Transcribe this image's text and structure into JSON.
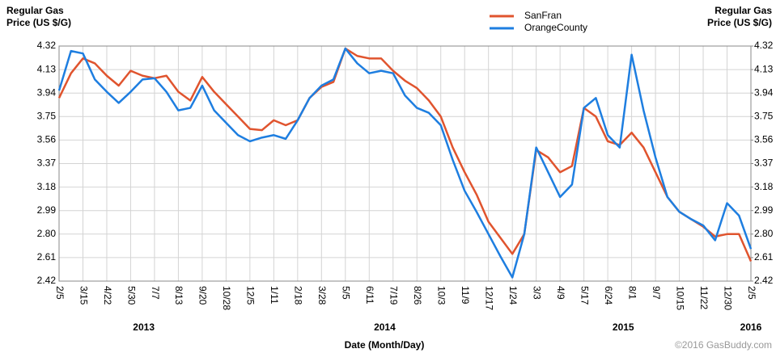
{
  "chart_data": {
    "type": "line",
    "y_label": [
      "Regular Gas",
      "Price (US $/G)"
    ],
    "y2_label": [
      "Regular Gas",
      "Price (US $/G)"
    ],
    "x_label": "Date (Month/Day)",
    "years": [
      "2013",
      "2014",
      "2015",
      "2016"
    ],
    "credit": "©2016 GasBuddy.com",
    "categories": [
      "2/5",
      null,
      "3/15",
      null,
      "4/22",
      null,
      "5/30",
      null,
      "7/7",
      null,
      "8/13",
      null,
      "9/20",
      null,
      "10/28",
      null,
      "12/5",
      null,
      "1/11",
      null,
      "2/18",
      null,
      "3/28",
      null,
      "5/5",
      null,
      "6/11",
      null,
      "7/19",
      null,
      "8/26",
      null,
      "10/3",
      null,
      "11/9",
      null,
      "12/17",
      null,
      "1/24",
      null,
      "3/3",
      null,
      "4/9",
      null,
      "5/17",
      null,
      "6/24",
      null,
      "8/1",
      null,
      "9/7",
      null,
      "10/15",
      null,
      "11/22",
      null,
      "12/30",
      null,
      "2/5"
    ],
    "series": [
      {
        "name": "SanFran",
        "color": "#e0542e",
        "values": [
          3.9,
          4.1,
          4.22,
          4.18,
          4.08,
          4.0,
          4.12,
          4.08,
          4.06,
          4.08,
          3.95,
          3.88,
          4.07,
          3.95,
          3.85,
          3.75,
          3.65,
          3.64,
          3.72,
          3.68,
          3.72,
          3.9,
          3.99,
          4.03,
          4.3,
          4.24,
          4.22,
          4.22,
          4.12,
          4.04,
          3.98,
          3.88,
          3.75,
          3.5,
          3.3,
          3.12,
          2.9,
          2.77,
          2.64,
          2.8,
          3.48,
          3.42,
          3.3,
          3.35,
          3.82,
          3.75,
          3.55,
          3.52,
          3.62,
          3.5,
          3.3,
          3.1,
          2.98,
          2.92,
          2.86,
          2.78,
          2.8,
          2.8,
          2.58
        ]
      },
      {
        "name": "OrangeCounty",
        "color": "#1e7ee0",
        "values": [
          3.96,
          4.28,
          4.26,
          4.05,
          3.95,
          3.86,
          3.95,
          4.05,
          4.06,
          3.95,
          3.8,
          3.82,
          4.0,
          3.8,
          3.7,
          3.6,
          3.55,
          3.58,
          3.6,
          3.57,
          3.72,
          3.9,
          4.0,
          4.05,
          4.3,
          4.18,
          4.1,
          4.12,
          4.1,
          3.92,
          3.82,
          3.78,
          3.68,
          3.4,
          3.15,
          2.98,
          2.8,
          2.62,
          2.45,
          2.8,
          3.5,
          3.3,
          3.1,
          3.2,
          3.82,
          3.9,
          3.6,
          3.5,
          4.25,
          3.8,
          3.42,
          3.1,
          2.98,
          2.92,
          2.87,
          2.75,
          3.05,
          2.95,
          2.68
        ]
      }
    ],
    "ylim": [
      2.42,
      4.32
    ],
    "yticks": [
      2.42,
      2.61,
      {
        "value": 2.8,
        "label": "2.80"
      },
      2.99,
      3.18,
      3.37,
      3.56,
      3.75,
      3.94,
      4.13,
      4.32
    ],
    "y2lim": [
      2.42,
      4.32
    ],
    "y2ticks": [
      2.42,
      2.61,
      {
        "value": 2.8,
        "label": "2.80"
      },
      2.99,
      3.18,
      3.37,
      3.56,
      3.75,
      3.94,
      4.13,
      4.32
    ],
    "grid": true,
    "legend": "top"
  }
}
